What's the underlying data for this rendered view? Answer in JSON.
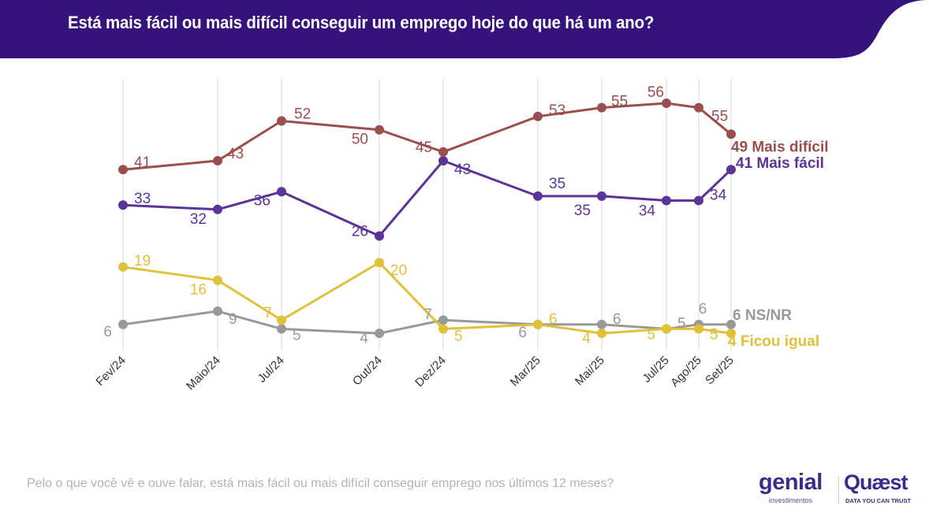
{
  "header": {
    "title": "Está mais fácil ou mais difícil conseguir um emprego hoje do que há um ano?",
    "background_color": "#35127c"
  },
  "footer": {
    "question": "Pelo o que você vê e ouve falar, está mais fácil ou mais difícil conseguir emprego nos últimos 12 meses?",
    "logo_genial": "genial",
    "logo_genial_sub": "investimentos",
    "logo_quaest": "Quæst",
    "logo_quaest_sub": "DATA YOU CAN TRUST"
  },
  "chart_data": {
    "type": "line",
    "title": "Está mais fácil ou mais difícil conseguir um emprego hoje do que há um ano?",
    "xlabel": "",
    "ylabel": "",
    "ylim": [
      4,
      56
    ],
    "grid": "vertical",
    "legend": "end-of-line labels (right)",
    "categories": [
      "Fev/24",
      "Maio/24",
      "Jul/24",
      "Out/24",
      "Dez/24",
      "Mar/25",
      "Mai/25",
      "Jul/25",
      "Ago/25",
      "Set/25"
    ],
    "series": [
      {
        "name": "Mais difícil",
        "color": "#9b4e4e",
        "values": [
          41,
          43,
          52,
          50,
          45,
          53,
          55,
          56,
          55,
          49
        ],
        "end_label": "49 Mais difícil"
      },
      {
        "name": "Mais fácil",
        "color": "#5a3596",
        "values": [
          33,
          32,
          36,
          26,
          43,
          35,
          35,
          34,
          34,
          41
        ],
        "end_label": "41 Mais fácil"
      },
      {
        "name": "Ficou igual",
        "color": "#e0c23a",
        "values": [
          19,
          16,
          7,
          20,
          5,
          6,
          4,
          5,
          5,
          4
        ],
        "end_label": "4 Ficou igual"
      },
      {
        "name": "NS/NR",
        "color": "#999999",
        "values": [
          6,
          9,
          5,
          4,
          7,
          6,
          6,
          5,
          6,
          6
        ],
        "end_label": "6 NS/NR"
      }
    ]
  }
}
